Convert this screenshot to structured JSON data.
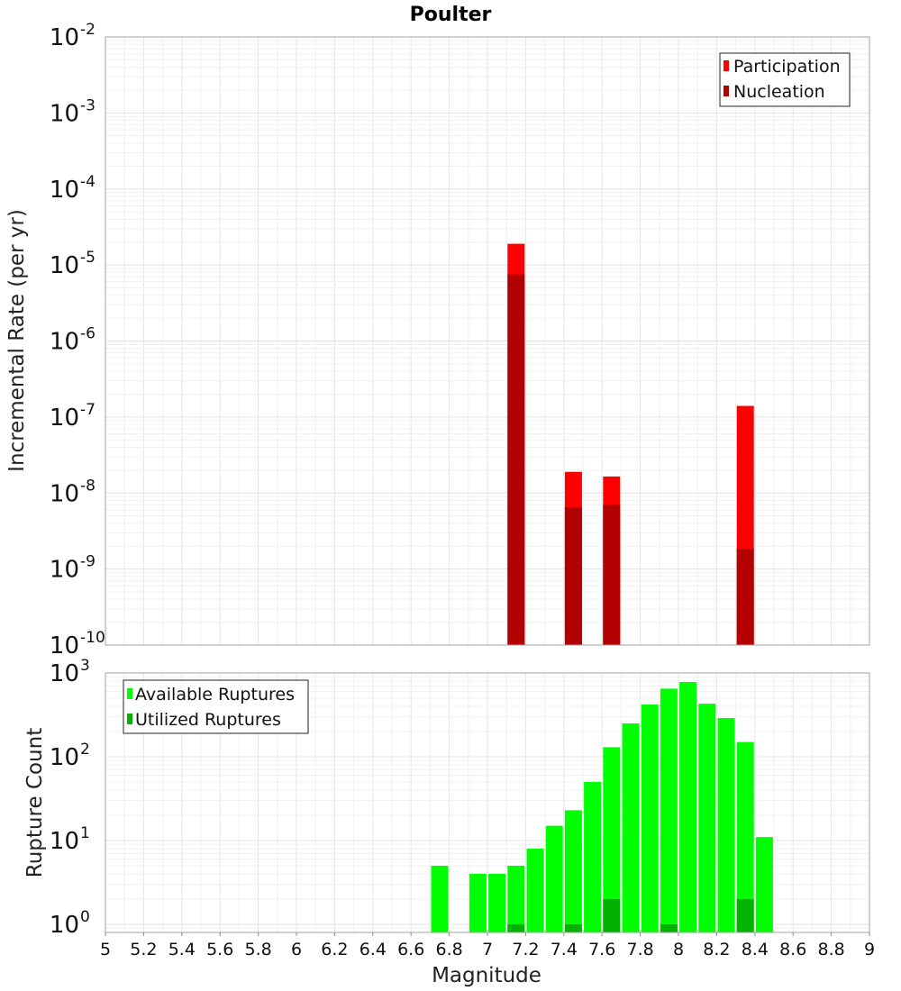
{
  "chart_data": [
    {
      "type": "bar",
      "title": "Poulter",
      "xlabel": "",
      "ylabel": "Incremental Rate (per yr)",
      "yscale": "log",
      "ylim": [
        1e-10,
        0.01
      ],
      "xlim": [
        5,
        9
      ],
      "grid": true,
      "legend_position": "top-right",
      "ytick_labels": [
        {
          "base": "10",
          "exp": "-10"
        },
        {
          "base": "10",
          "exp": "-9"
        },
        {
          "base": "10",
          "exp": "-8"
        },
        {
          "base": "10",
          "exp": "-7"
        },
        {
          "base": "10",
          "exp": "-6"
        },
        {
          "base": "10",
          "exp": "-5"
        },
        {
          "base": "10",
          "exp": "-4"
        },
        {
          "base": "10",
          "exp": "-3"
        },
        {
          "base": "10",
          "exp": "-2"
        }
      ],
      "series": [
        {
          "name": "Participation",
          "color": "#ff0000",
          "points": [
            {
              "x": 7.15,
              "y": 1.9e-05
            },
            {
              "x": 7.45,
              "y": 1.9e-08
            },
            {
              "x": 7.65,
              "y": 1.65e-08
            },
            {
              "x": 8.35,
              "y": 1.4e-07
            }
          ]
        },
        {
          "name": "Nucleation",
          "color": "#b30000",
          "points": [
            {
              "x": 7.15,
              "y": 7.5e-06
            },
            {
              "x": 7.45,
              "y": 6.5e-09
            },
            {
              "x": 7.65,
              "y": 7e-09
            },
            {
              "x": 8.35,
              "y": 1.85e-09
            }
          ]
        }
      ]
    },
    {
      "type": "bar",
      "xlabel": "Magnitude",
      "ylabel": "Rupture Count",
      "yscale": "log",
      "ylim": [
        0.8,
        1000
      ],
      "xlim": [
        5,
        9
      ],
      "grid": true,
      "legend_position": "top-left",
      "xtick_labels": [
        "5",
        "5.2",
        "5.4",
        "5.6",
        "5.8",
        "6",
        "6.2",
        "6.4",
        "6.6",
        "6.8",
        "7",
        "7.2",
        "7.4",
        "7.6",
        "7.8",
        "8",
        "8.2",
        "8.4",
        "8.6",
        "8.8",
        "9"
      ],
      "ytick_labels": [
        {
          "base": "10",
          "exp": "0"
        },
        {
          "base": "10",
          "exp": "1"
        },
        {
          "base": "10",
          "exp": "2"
        },
        {
          "base": "10",
          "exp": "3"
        }
      ],
      "series": [
        {
          "name": "Available Ruptures",
          "color": "#00ff00",
          "points": [
            {
              "x": 6.75,
              "y": 5
            },
            {
              "x": 6.95,
              "y": 4
            },
            {
              "x": 7.05,
              "y": 4
            },
            {
              "x": 7.15,
              "y": 5
            },
            {
              "x": 7.25,
              "y": 8
            },
            {
              "x": 7.35,
              "y": 15
            },
            {
              "x": 7.45,
              "y": 23
            },
            {
              "x": 7.55,
              "y": 50
            },
            {
              "x": 7.65,
              "y": 130
            },
            {
              "x": 7.75,
              "y": 250
            },
            {
              "x": 7.85,
              "y": 420
            },
            {
              "x": 7.95,
              "y": 650
            },
            {
              "x": 8.05,
              "y": 780
            },
            {
              "x": 8.15,
              "y": 430
            },
            {
              "x": 8.25,
              "y": 290
            },
            {
              "x": 8.35,
              "y": 150
            },
            {
              "x": 8.45,
              "y": 11
            }
          ]
        },
        {
          "name": "Utilized Ruptures",
          "color": "#00b300",
          "points": [
            {
              "x": 7.15,
              "y": 1
            },
            {
              "x": 7.45,
              "y": 1
            },
            {
              "x": 7.65,
              "y": 2
            },
            {
              "x": 7.95,
              "y": 1
            },
            {
              "x": 8.35,
              "y": 2
            }
          ]
        }
      ]
    }
  ]
}
